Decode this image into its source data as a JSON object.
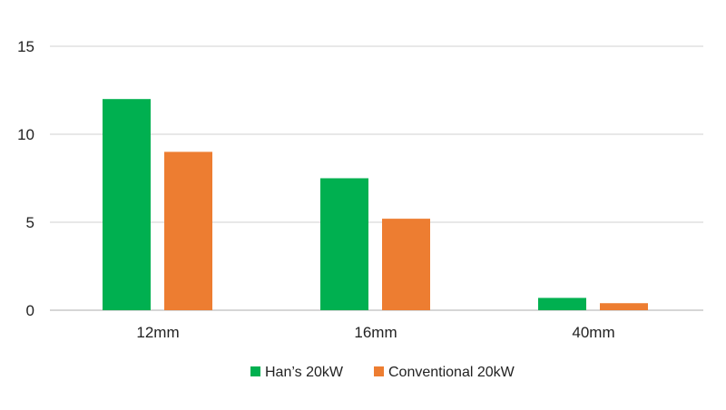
{
  "chart_data": {
    "type": "bar",
    "title": "",
    "xlabel": "",
    "ylabel": "",
    "categories": [
      "12mm",
      "16mm",
      "40mm"
    ],
    "series": [
      {
        "name": "Han’s 20kW",
        "values": [
          12,
          7.5,
          0.7
        ],
        "color": "#00b050"
      },
      {
        "name": "Conventional 20kW",
        "values": [
          9,
          5.2,
          0.4
        ],
        "color": "#ed7d31"
      }
    ],
    "ylim": [
      0,
      15
    ],
    "yticks": [
      0,
      5,
      10,
      15
    ],
    "grid": true,
    "legend": "bottom"
  }
}
